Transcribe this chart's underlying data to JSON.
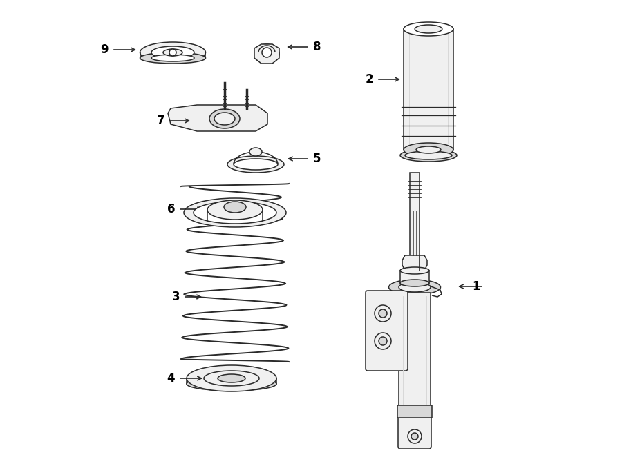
{
  "background_color": "#ffffff",
  "figsize": [
    9.0,
    6.62
  ],
  "dpi": 100,
  "line_color": "#2a2a2a",
  "fill_light": "#f0f0f0",
  "fill_mid": "#d8d8d8",
  "fill_dark": "#b0b0b0",
  "text_color": "#000000",
  "lw": 1.1
}
